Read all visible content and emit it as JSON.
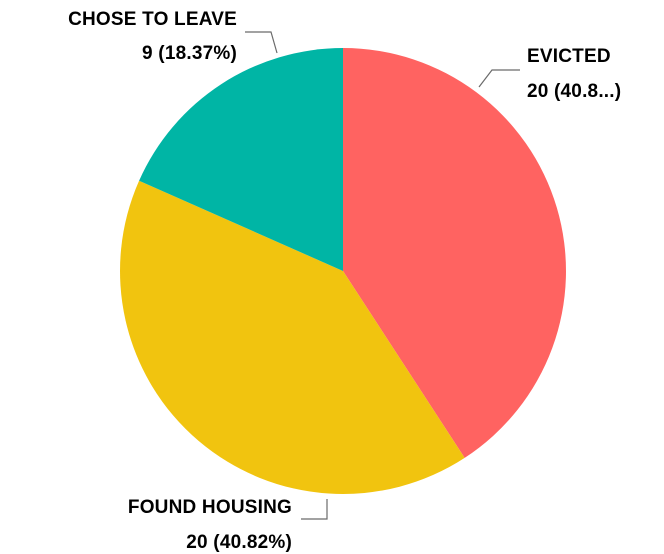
{
  "chart_data": {
    "type": "pie",
    "slices": [
      {
        "name": "EVICTED",
        "value": 20,
        "label_name": "EVICTED",
        "label_value": "20 (40.8...)",
        "color": "#ff6361"
      },
      {
        "name": "FOUND HOUSING",
        "value": 20,
        "label_name": "FOUND HOUSING",
        "label_value": "20 (40.82%)",
        "color": "#f1c40f"
      },
      {
        "name": "CHOSE TO LEAVE",
        "value": 9,
        "label_name": "CHOSE TO LEAVE",
        "label_value": "9 (18.37%)",
        "color": "#00b5a5"
      }
    ],
    "start_angle": "top",
    "direction": "clockwise",
    "legend": "none"
  }
}
